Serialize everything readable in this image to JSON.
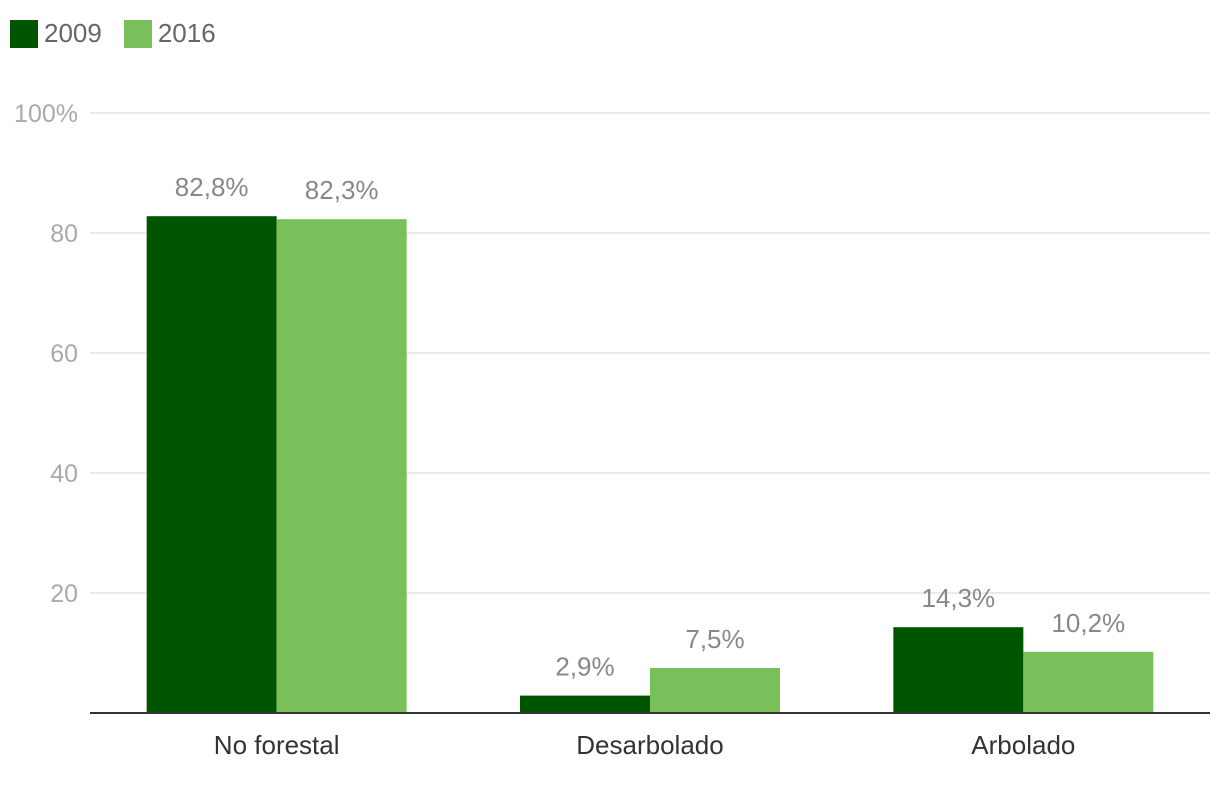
{
  "chart_data": {
    "type": "bar",
    "categories": [
      "No forestal",
      "Desarbolado",
      "Arbolado"
    ],
    "series": [
      {
        "name": "2009",
        "color": "#005500",
        "values": [
          82.8,
          2.9,
          14.3
        ],
        "labels": [
          "82,8%",
          "2,9%",
          "14,3%"
        ]
      },
      {
        "name": "2016",
        "color": "#79c05a",
        "values": [
          82.3,
          7.5,
          10.2
        ],
        "labels": [
          "82,3%",
          "7,5%",
          "10,2%"
        ]
      }
    ],
    "ylim": [
      0,
      100
    ],
    "yticks": [
      20,
      40,
      60,
      80,
      100
    ],
    "ytick_labels": [
      "20",
      "40",
      "60",
      "80",
      "100%"
    ],
    "grid": true,
    "legend": "top-left"
  }
}
